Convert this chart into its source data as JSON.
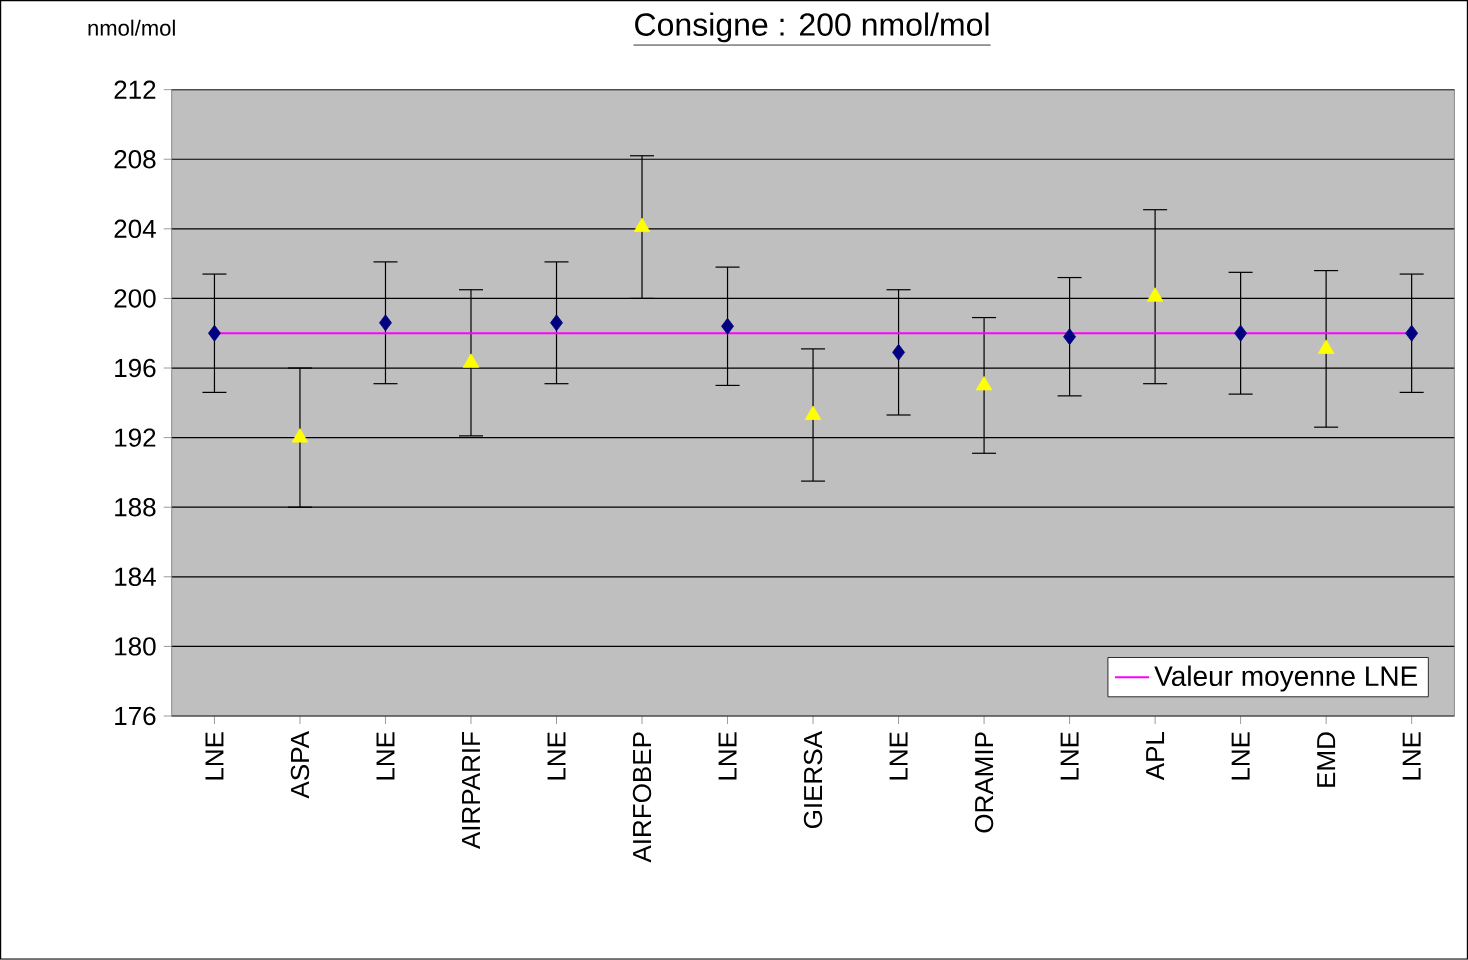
{
  "chart_data": {
    "type": "scatter",
    "title": "Consigne : 200 nmol/mol",
    "ylabel": "nmol/mol",
    "categories": [
      "LNE",
      "ASPA",
      "LNE",
      "AIRPARIF",
      "LNE",
      "AIRFOBEP",
      "LNE",
      "GIERSA",
      "LNE",
      "ORAMIP",
      "LNE",
      "APL",
      "LNE",
      "EMD",
      "LNE"
    ],
    "series": [
      {
        "color": "#000080",
        "marker": "diamond",
        "values": [
          198.0,
          null,
          198.6,
          null,
          198.6,
          null,
          198.4,
          null,
          196.9,
          null,
          197.8,
          null,
          198.0,
          null,
          198.0
        ],
        "errors": [
          3.4,
          null,
          3.5,
          null,
          3.5,
          null,
          3.4,
          null,
          3.6,
          null,
          3.4,
          null,
          3.5,
          null,
          3.4
        ]
      },
      {
        "color": "#ffff00",
        "marker": "triangle",
        "values": [
          null,
          192.0,
          null,
          196.3,
          null,
          204.1,
          null,
          193.3,
          null,
          195.0,
          null,
          200.1,
          null,
          197.1,
          null
        ],
        "errors": [
          null,
          4.0,
          null,
          4.2,
          null,
          4.1,
          null,
          3.8,
          null,
          3.9,
          null,
          5.0,
          null,
          4.5,
          null
        ]
      },
      {
        "type": "line",
        "name": "Valeur moyenne LNE",
        "color": "#ff00ff",
        "marker": "none",
        "values": [
          198,
          198,
          198,
          198,
          198,
          198,
          198,
          198,
          198,
          198,
          198,
          198,
          198,
          198,
          198
        ]
      }
    ],
    "ylim": [
      176,
      212
    ],
    "yticks": [
      176,
      180,
      184,
      188,
      192,
      196,
      200,
      204,
      208,
      212
    ],
    "grid": "y",
    "legend": "bottom right"
  }
}
